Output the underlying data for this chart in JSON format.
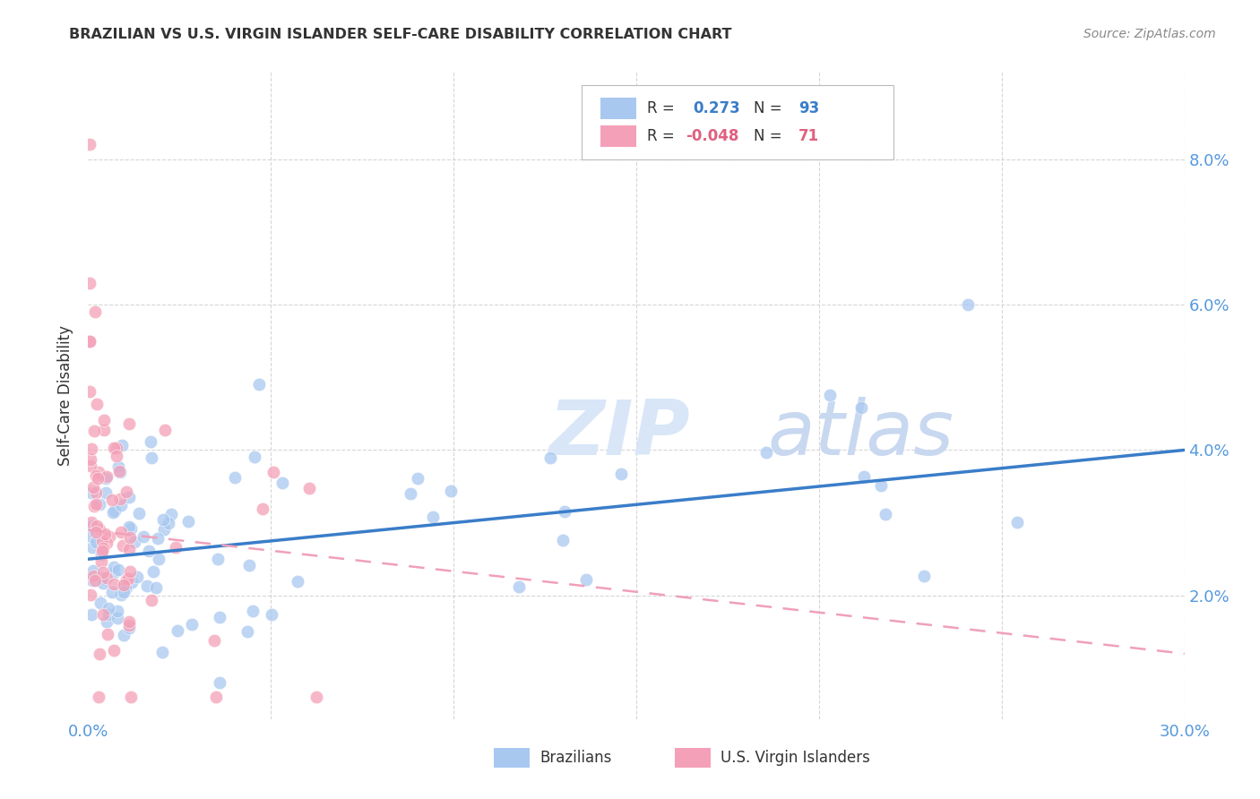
{
  "title": "BRAZILIAN VS U.S. VIRGIN ISLANDER SELF-CARE DISABILITY CORRELATION CHART",
  "source": "Source: ZipAtlas.com",
  "ylabel": "Self-Care Disability",
  "ytick_vals": [
    0.02,
    0.04,
    0.06,
    0.08
  ],
  "xmin": 0.0,
  "xmax": 0.3,
  "ymin": 0.003,
  "ymax": 0.092,
  "blue_R": 0.273,
  "blue_N": 93,
  "pink_R": -0.048,
  "pink_N": 71,
  "blue_color": "#A8C8F0",
  "pink_color": "#F4A0B8",
  "blue_line_color": "#3A7DC9",
  "pink_line_color": "#F0A0B8",
  "watermark_color": "#D8E6F8",
  "legend_label_blue": "Brazilians",
  "legend_label_pink": "U.S. Virgin Islanders",
  "blue_line_y0": 0.025,
  "blue_line_y1": 0.04,
  "pink_line_y0": 0.029,
  "pink_line_y1": 0.012,
  "grid_color": "#CCCCCC",
  "tick_color": "#5599DD",
  "title_color": "#333333",
  "source_color": "#888888"
}
